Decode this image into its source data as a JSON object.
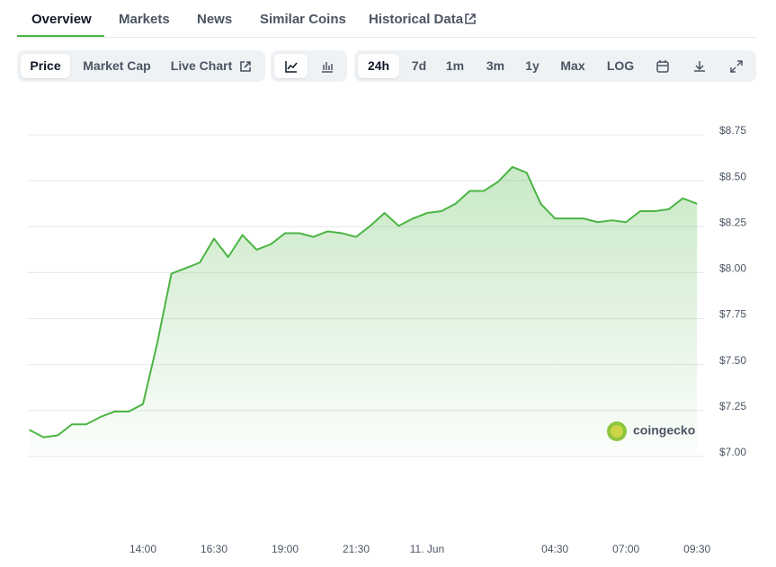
{
  "tabs": [
    "Overview",
    "Markets",
    "News",
    "Similar Coins",
    "Historical Data"
  ],
  "toolbar": {
    "views": [
      "Price",
      "Market Cap",
      "Live Chart"
    ],
    "ranges": [
      "24h",
      "7d",
      "1m",
      "3m",
      "1y",
      "Max",
      "LOG"
    ]
  },
  "watermark": "coingecko",
  "chart_data": {
    "type": "line",
    "categories": [
      null,
      null,
      null,
      null,
      null,
      null,
      null,
      null,
      "14:00",
      null,
      null,
      null,
      null,
      "16:30",
      null,
      null,
      null,
      null,
      "19:00",
      null,
      null,
      null,
      null,
      "21:30",
      null,
      null,
      null,
      null,
      "11. Jun",
      null,
      null,
      null,
      null,
      null,
      null,
      null,
      null,
      "04:30",
      null,
      null,
      null,
      null,
      "07:00",
      null,
      null,
      null,
      null,
      "09:30"
    ],
    "series": [
      {
        "name": "Price",
        "color": "#4bb543",
        "values": [
          7.13,
          7.09,
          7.1,
          7.16,
          7.16,
          7.2,
          7.23,
          7.23,
          7.27,
          7.6,
          7.98,
          8.01,
          8.04,
          8.17,
          8.07,
          8.19,
          8.11,
          8.14,
          8.2,
          8.2,
          8.18,
          8.21,
          8.2,
          8.18,
          8.24,
          8.31,
          8.24,
          8.28,
          8.31,
          8.32,
          8.36,
          8.43,
          8.43,
          8.48,
          8.56,
          8.53,
          8.36,
          8.28,
          8.28,
          8.28,
          8.26,
          8.27,
          8.26,
          8.32,
          8.32,
          8.33,
          8.39,
          8.36
        ]
      }
    ],
    "ylim": [
      7.0,
      8.75
    ],
    "yticks": [
      {
        "value": 7.0,
        "label": "$7.00"
      },
      {
        "value": 7.25,
        "label": "$7.25"
      },
      {
        "value": 7.5,
        "label": "$7.50"
      },
      {
        "value": 7.75,
        "label": "$7.75"
      },
      {
        "value": 8.0,
        "label": "$8.00"
      },
      {
        "value": 8.25,
        "label": "$8.25"
      },
      {
        "value": 8.5,
        "label": "$8.50"
      },
      {
        "value": 8.75,
        "label": "$8.75"
      }
    ],
    "grid": true
  }
}
